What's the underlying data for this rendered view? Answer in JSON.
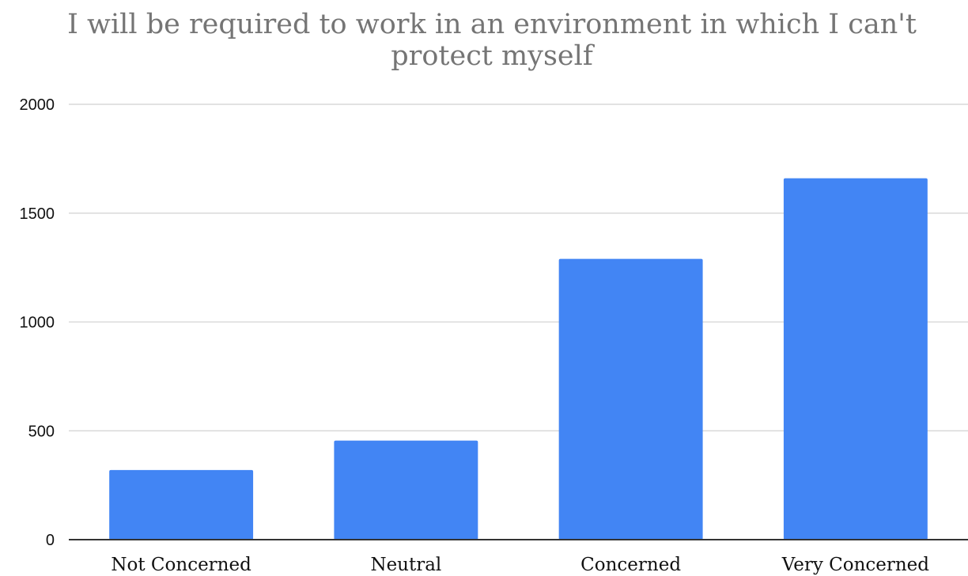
{
  "chart_data": {
    "type": "bar",
    "title_lines": [
      "I will be required to work in an environment in which I can't",
      "protect myself"
    ],
    "categories": [
      "Not Concerned",
      "Neutral",
      "Concerned",
      "Very Concerned"
    ],
    "values": [
      320,
      455,
      1290,
      1660
    ],
    "yticks": [
      "0",
      "500",
      "1000",
      "1500",
      "2000"
    ],
    "ylim": [
      0,
      2000
    ],
    "grid": true,
    "colors": {
      "bar": "#4285f4",
      "title": "#757575",
      "grid": "#d9d9d9",
      "axis": "#333333",
      "text": "#111111"
    }
  }
}
